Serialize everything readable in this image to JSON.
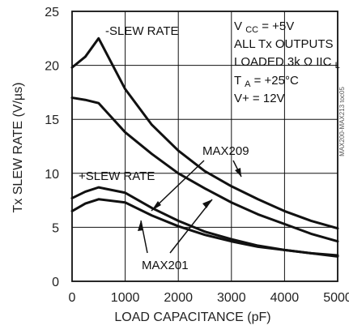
{
  "chart_data": {
    "type": "line",
    "title": "",
    "xlabel": "LOAD CAPACITANCE (pF)",
    "ylabel": "Tx SLEW RATE (V/µs)",
    "xlim": [
      0,
      5000
    ],
    "ylim": [
      0,
      25
    ],
    "x_ticks": [
      0,
      1000,
      2000,
      3000,
      4000,
      5000
    ],
    "y_ticks": [
      0,
      5,
      10,
      15,
      20,
      25
    ],
    "x_tick_labels": [
      "0",
      "1000",
      "2000",
      "3000",
      "4000",
      "5000"
    ],
    "y_tick_labels": [
      "0",
      "5",
      "10",
      "15",
      "20",
      "25"
    ],
    "grid": true,
    "series": [
      {
        "name": "",
        "x": [
          0,
          250,
          500,
          1000,
          1500,
          2000,
          2500,
          3000,
          3500,
          4000,
          4500,
          5000
        ],
        "y": [
          19.8,
          20.8,
          22.5,
          17.8,
          14.5,
          12.1,
          10.2,
          8.8,
          7.6,
          6.5,
          5.6,
          4.9
        ]
      },
      {
        "name": "",
        "x": [
          0,
          250,
          500,
          1000,
          1500,
          2000,
          2500,
          3000,
          3500,
          4000,
          4500,
          5000
        ],
        "y": [
          17.0,
          16.8,
          16.5,
          13.8,
          11.8,
          10.0,
          8.6,
          7.3,
          6.2,
          5.3,
          4.4,
          3.7
        ]
      },
      {
        "name": "",
        "x": [
          0,
          250,
          500,
          1000,
          1500,
          2000,
          2500,
          3000,
          3500,
          4000,
          4500,
          5000
        ],
        "y": [
          7.7,
          8.3,
          8.7,
          8.2,
          6.8,
          5.6,
          4.6,
          3.9,
          3.3,
          2.9,
          2.6,
          2.3
        ]
      },
      {
        "name": "",
        "x": [
          0,
          250,
          500,
          1000,
          1500,
          2000,
          2500,
          3000,
          3500,
          4000,
          4500,
          5000
        ],
        "y": [
          6.5,
          7.2,
          7.6,
          7.3,
          6.1,
          5.1,
          4.3,
          3.7,
          3.2,
          2.9,
          2.6,
          2.4
        ]
      }
    ],
    "annotations": {
      "minus_slew": "-SLEW RATE",
      "plus_slew": "+SLEW RATE",
      "max209": "MAX209",
      "max201": "MAX201"
    },
    "conditions": {
      "vcc_prefix": "V",
      "vcc_sub": "CC",
      "vcc_value": " = +5V",
      "outputs": "ALL Tx OUTPUTS",
      "loaded_prefix": "LOADED 3k",
      "omega": "Ω",
      "loaded_mid": "IIC",
      "loaded_sub": "L",
      "ta_prefix": "T",
      "ta_sub": "A",
      "ta_value": " = +25°C",
      "vplus": "V+ = 12V"
    },
    "code": "MAX200-MAX213 toc05"
  }
}
